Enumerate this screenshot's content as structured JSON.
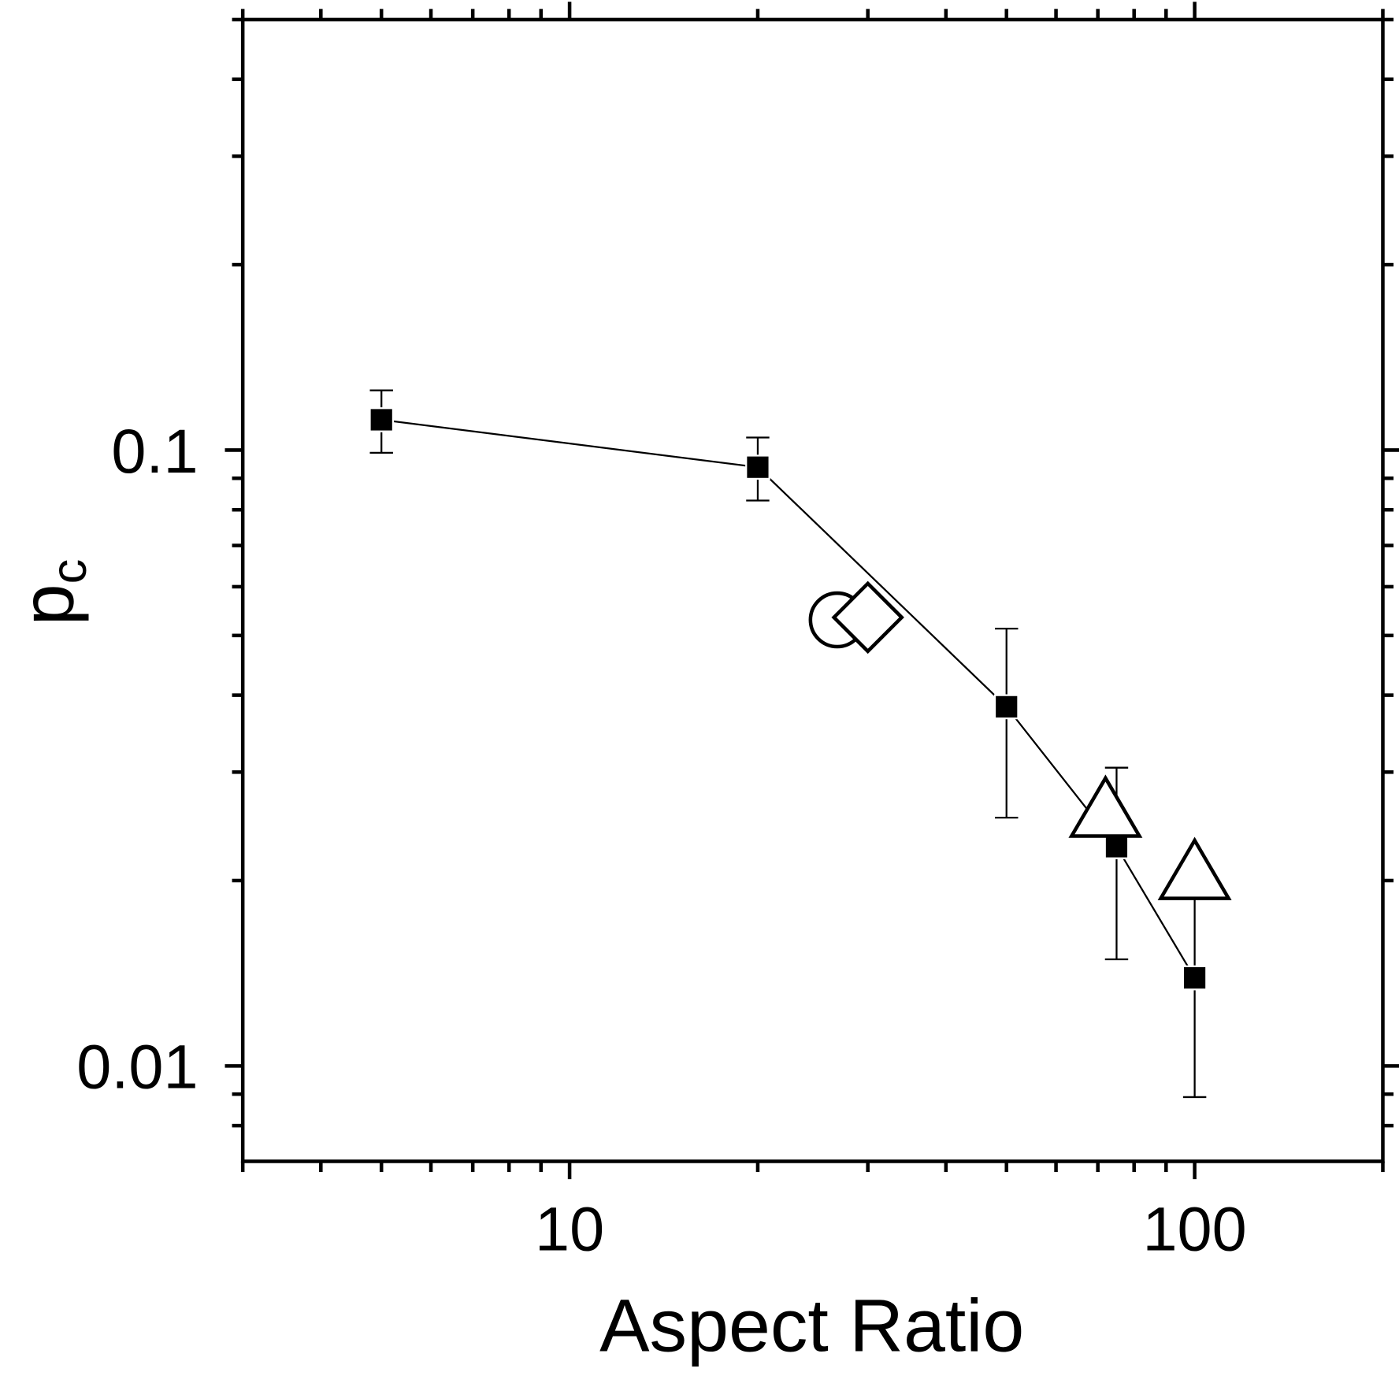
{
  "chart_data": {
    "type": "scatter",
    "x_label": "Aspect Ratio",
    "y_label": {
      "text": "p",
      "subscript": "c"
    },
    "x_log": true,
    "y_log": true,
    "xlim": [
      3,
      200
    ],
    "ylim": [
      0.007,
      0.5
    ],
    "xticks": [
      10,
      100
    ],
    "yticks": [
      0.01,
      0.1
    ],
    "xminor_ticks": [
      3,
      4,
      5,
      6,
      7,
      8,
      9,
      20,
      30,
      40,
      50,
      60,
      70,
      80,
      90,
      200
    ],
    "yminor_ticks": [
      0.008,
      0.009,
      0.02,
      0.03,
      0.04,
      0.05,
      0.06,
      0.07,
      0.08,
      0.09,
      0.2,
      0.3,
      0.4,
      0.5
    ],
    "series": [
      {
        "marker": "square",
        "color": "#000000",
        "line": true,
        "x": [
          5,
          20,
          50,
          75,
          100
        ],
        "values": [
          0.112,
          0.0938,
          0.0383,
          0.0227,
          0.0139
        ],
        "errors": [
          0.013,
          0.011,
          0.013,
          0.0078,
          0.005
        ]
      },
      {
        "marker": "circle",
        "color": "#000000",
        "line": false,
        "x": [
          26.8
        ],
        "values": [
          0.053
        ]
      },
      {
        "marker": "diamond",
        "color": "#000000",
        "line": false,
        "x": [
          30
        ],
        "values": [
          0.0535
        ]
      },
      {
        "marker": "triangle",
        "color": "#000000",
        "line": false,
        "x": [
          72,
          100
        ],
        "values": [
          0.0255,
          0.0202
        ]
      }
    ]
  }
}
